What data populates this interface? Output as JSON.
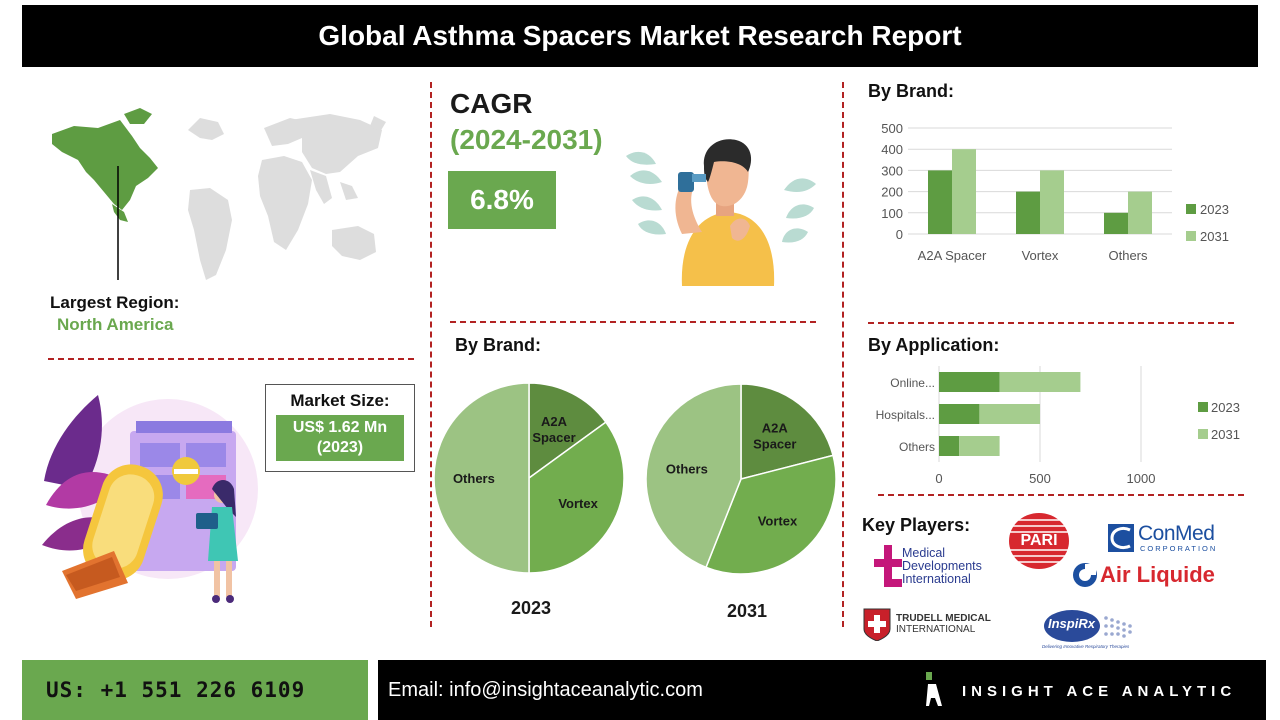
{
  "title": "Global Asthma Spacers Market Research Report",
  "region": {
    "label": "Largest Region:",
    "value": "North America"
  },
  "cagr": {
    "title": "CAGR",
    "period": "(2024-2031)",
    "value": "6.8%"
  },
  "market_size": {
    "label": "Market Size:",
    "value": "US$ 1.62 Mn",
    "year": "(2023)"
  },
  "brand_bar_heading": "By Brand:",
  "brand_pie_heading": "By Brand:",
  "application_heading": "By Application:",
  "key_players_heading": "Key Players:",
  "pie_years": [
    "2023",
    "2031"
  ],
  "logos": {
    "mdi": [
      "Medical",
      "Developments",
      "International"
    ],
    "pari": "PARI",
    "conmed": "ConMed",
    "conmed_sub": "CORPORATION",
    "airliquide": "Air Liquide",
    "trudell": [
      "TRUDELL MEDICAL",
      "INTERNATIONAL"
    ],
    "inspirx": "InspiRx",
    "inspirx_tag": "Delivering Innovative Respiratory Therapies"
  },
  "footer": {
    "phone": "US: +1 551 226 6109",
    "email": "Email: info@insightaceanalytic.com",
    "brand": "INSIGHT ACE ANALYTIC"
  },
  "colors": {
    "green_dark": "#5e9c42",
    "green_light": "#a5cd8e",
    "pie_dark": "#5e8c3f",
    "pie_mid": "#72ad4e",
    "pie_light": "#9cc383",
    "accent_red": "#b22222"
  },
  "chart_data": [
    {
      "type": "bar",
      "title": "By Brand:",
      "categories": [
        "A2A Spacer",
        "Vortex",
        "Others"
      ],
      "series": [
        {
          "name": "2023",
          "values": [
            300,
            200,
            100
          ]
        },
        {
          "name": "2031",
          "values": [
            400,
            300,
            200
          ]
        }
      ],
      "ylim": [
        0,
        500
      ],
      "yticks": [
        "0",
        "100",
        "200",
        "300",
        "400",
        "500"
      ],
      "grid": true,
      "legend": "right"
    },
    {
      "type": "bar",
      "orientation": "horizontal",
      "stacked": true,
      "title": "By Application:",
      "categories": [
        "Online...",
        "Hospitals...",
        "Others"
      ],
      "series": [
        {
          "name": "2023",
          "values": [
            300,
            200,
            100
          ]
        },
        {
          "name": "2031",
          "values": [
            400,
            300,
            200
          ]
        }
      ],
      "xlim": [
        0,
        1000
      ],
      "xticks": [
        "0",
        "500",
        "1000"
      ],
      "grid": true,
      "legend": "right"
    },
    {
      "type": "pie",
      "title": "2023",
      "labels": [
        "A2A Spacer",
        "Vortex",
        "Others"
      ],
      "values": [
        15,
        35,
        50
      ]
    },
    {
      "type": "pie",
      "title": "2031",
      "labels": [
        "A2A Spacer",
        "Vortex",
        "Others"
      ],
      "values": [
        21,
        35,
        44
      ]
    }
  ]
}
